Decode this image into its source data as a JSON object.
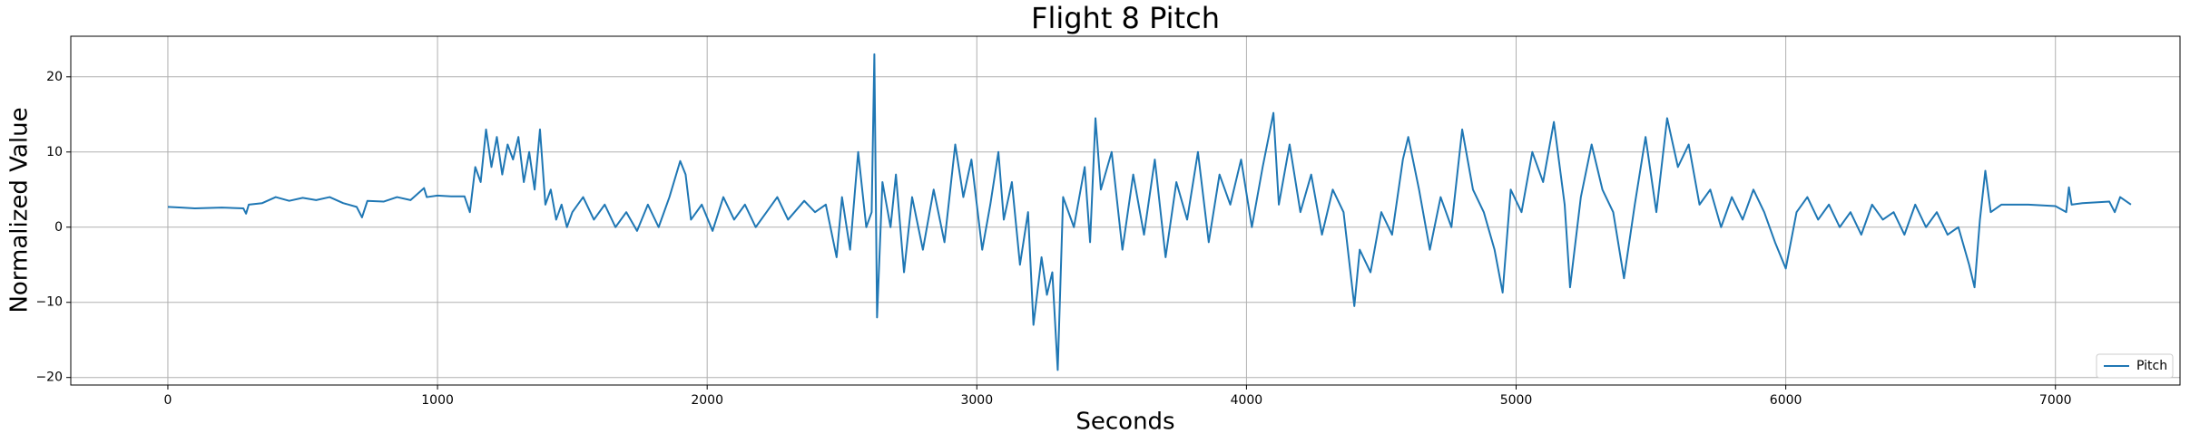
{
  "chart_data": {
    "type": "line",
    "title": "Flight 8 Pitch",
    "x_label": "Seconds",
    "y_label": "Normalized Value",
    "x": [
      0,
      50,
      100,
      200,
      280,
      290,
      300,
      350,
      400,
      450,
      500,
      550,
      600,
      650,
      700,
      720,
      740,
      800,
      850,
      900,
      950,
      960,
      1000,
      1050,
      1100,
      1120,
      1140,
      1160,
      1180,
      1200,
      1220,
      1240,
      1260,
      1280,
      1300,
      1320,
      1340,
      1360,
      1380,
      1400,
      1420,
      1440,
      1460,
      1480,
      1500,
      1540,
      1580,
      1620,
      1660,
      1700,
      1740,
      1780,
      1820,
      1860,
      1900,
      1920,
      1940,
      1980,
      2020,
      2060,
      2100,
      2140,
      2180,
      2220,
      2260,
      2300,
      2360,
      2400,
      2440,
      2480,
      2500,
      2530,
      2560,
      2590,
      2610,
      2620,
      2630,
      2650,
      2680,
      2700,
      2730,
      2760,
      2800,
      2840,
      2880,
      2920,
      2950,
      2980,
      3020,
      3050,
      3080,
      3100,
      3130,
      3160,
      3190,
      3210,
      3240,
      3260,
      3280,
      3300,
      3320,
      3360,
      3400,
      3420,
      3440,
      3460,
      3500,
      3540,
      3580,
      3620,
      3660,
      3700,
      3740,
      3780,
      3820,
      3860,
      3900,
      3940,
      3980,
      4020,
      4060,
      4100,
      4120,
      4160,
      4200,
      4240,
      4280,
      4320,
      4360,
      4400,
      4420,
      4460,
      4500,
      4540,
      4580,
      4600,
      4640,
      4680,
      4720,
      4760,
      4800,
      4840,
      4880,
      4920,
      4950,
      4980,
      5020,
      5060,
      5100,
      5140,
      5180,
      5200,
      5240,
      5280,
      5320,
      5360,
      5400,
      5440,
      5480,
      5520,
      5560,
      5600,
      5640,
      5680,
      5720,
      5760,
      5800,
      5840,
      5880,
      5920,
      5960,
      6000,
      6040,
      6080,
      6120,
      6160,
      6200,
      6240,
      6280,
      6320,
      6360,
      6400,
      6440,
      6480,
      6520,
      6560,
      6600,
      6640,
      6680,
      6700,
      6720,
      6740,
      6760,
      6800,
      6900,
      7000,
      7040,
      7050,
      7060,
      7100,
      7200,
      7220,
      7240,
      7280
    ],
    "series": [
      {
        "name": "Pitch",
        "color": "#1f77b4",
        "values": [
          2.7,
          2.6,
          2.5,
          2.6,
          2.5,
          1.8,
          3,
          3.2,
          4,
          3.5,
          3.9,
          3.6,
          4,
          3.2,
          2.7,
          1.3,
          3.5,
          3.4,
          4,
          3.6,
          5.2,
          4,
          4.2,
          4.1,
          4.1,
          2,
          8,
          6,
          13,
          8,
          12,
          7,
          11,
          9,
          12,
          6,
          10,
          5,
          13,
          3,
          5,
          1,
          3,
          0,
          2,
          4,
          1,
          3,
          0,
          2,
          -0.5,
          3,
          0,
          4,
          8.8,
          7,
          1,
          3,
          -0.5,
          4,
          1,
          3,
          0,
          2,
          4,
          1,
          3.5,
          2,
          3,
          -4,
          4,
          -3,
          10,
          0,
          2,
          23,
          -12,
          6,
          0,
          7,
          -6,
          4,
          -3,
          5,
          -2,
          11,
          4,
          9,
          -3,
          3,
          10,
          1,
          6,
          -5,
          2,
          -13,
          -4,
          -9,
          -6,
          -19,
          4,
          0,
          8,
          -2,
          14.5,
          5,
          10,
          -3,
          7,
          -1,
          9,
          -4,
          6,
          1,
          10,
          -2,
          7,
          3,
          9,
          0,
          8,
          15.2,
          3,
          11,
          2,
          7,
          -1,
          5,
          2,
          -10.5,
          -3,
          -6,
          2,
          -1,
          9,
          12,
          5,
          -3,
          4,
          0,
          13,
          5,
          2,
          -3,
          -8.7,
          5,
          2,
          10,
          6,
          14,
          3,
          -8,
          4,
          11,
          5,
          2,
          -6.8,
          3,
          12,
          2,
          14.5,
          8,
          11,
          3,
          5,
          0,
          4,
          1,
          5,
          2,
          -2,
          -5.5,
          2,
          4,
          1,
          3,
          0,
          2,
          -1,
          3,
          1,
          2,
          -1,
          3,
          0,
          2,
          -1,
          0,
          -5,
          -8,
          1,
          7.5,
          2,
          3,
          3,
          2.8,
          2,
          5.3,
          3,
          3.2,
          3.4,
          2,
          4,
          3
        ]
      }
    ],
    "xlim": [
      -360,
      7462
    ],
    "ylim": [
      -21,
      25.4
    ],
    "xticks": [
      0,
      1000,
      2000,
      3000,
      4000,
      5000,
      6000,
      7000
    ],
    "yticks": [
      {
        "value": -20,
        "label": "−20"
      },
      {
        "value": -10,
        "label": "−10"
      },
      0,
      10,
      20
    ],
    "grid": true,
    "legend": "lower right"
  }
}
